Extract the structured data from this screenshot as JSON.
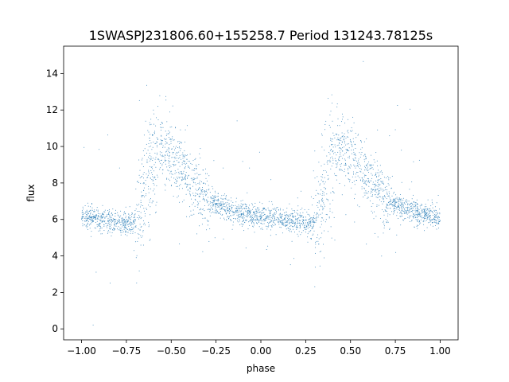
{
  "chart_data": {
    "type": "scatter",
    "title": "1SWASPJ231806.60+155258.7 Period 131243.78125s",
    "xlabel": "phase",
    "ylabel": "flux",
    "xlim": [
      -1.1,
      1.1
    ],
    "ylim": [
      -0.6,
      15.5
    ],
    "xticks": [
      -1.0,
      -0.75,
      -0.5,
      -0.25,
      0.0,
      0.25,
      0.5,
      0.75,
      1.0
    ],
    "xtick_labels": [
      "−1.00",
      "−0.75",
      "−0.50",
      "−0.25",
      "0.00",
      "0.25",
      "0.50",
      "0.75",
      "1.00"
    ],
    "yticks": [
      0,
      2,
      4,
      6,
      8,
      10,
      12,
      14
    ],
    "ytick_labels": [
      "0",
      "2",
      "4",
      "6",
      "8",
      "10",
      "12",
      "14"
    ],
    "grid": false,
    "marker_color": "#1f77b4",
    "series": [
      {
        "description": "dense light curve; values below are a representative sample of the folded flux",
        "x": [
          -1.0,
          -0.95,
          -0.9,
          -0.85,
          -0.8,
          -0.75,
          -0.7,
          -0.67,
          -0.64,
          -0.62,
          -0.6,
          -0.57,
          -0.55,
          -0.52,
          -0.5,
          -0.47,
          -0.45,
          -0.42,
          -0.4,
          -0.37,
          -0.35,
          -0.32,
          -0.3,
          -0.27,
          -0.25,
          -0.2,
          -0.15,
          -0.1,
          -0.05,
          0.0,
          0.05,
          0.1,
          0.15,
          0.2,
          0.25,
          0.3,
          0.33,
          0.36,
          0.38,
          0.4,
          0.43,
          0.45,
          0.48,
          0.5,
          0.53,
          0.55,
          0.58,
          0.6,
          0.63,
          0.65,
          0.68,
          0.7,
          0.73,
          0.75,
          0.8,
          0.85,
          0.9,
          0.95,
          1.0
        ],
        "y": [
          6.2,
          6.1,
          6.0,
          5.9,
          5.85,
          5.8,
          5.9,
          6.8,
          8.6,
          9.6,
          9.9,
          10.0,
          9.9,
          9.7,
          9.5,
          9.2,
          8.9,
          8.6,
          8.2,
          7.9,
          7.6,
          7.4,
          7.1,
          6.9,
          6.8,
          6.6,
          6.4,
          6.3,
          6.2,
          6.15,
          6.1,
          6.0,
          5.9,
          5.85,
          5.8,
          5.9,
          6.8,
          8.6,
          9.6,
          9.9,
          10.0,
          9.9,
          9.7,
          9.5,
          9.2,
          8.9,
          8.6,
          8.2,
          7.9,
          7.6,
          7.4,
          7.1,
          6.9,
          6.8,
          6.6,
          6.4,
          6.3,
          6.2,
          6.2
        ]
      }
    ]
  }
}
